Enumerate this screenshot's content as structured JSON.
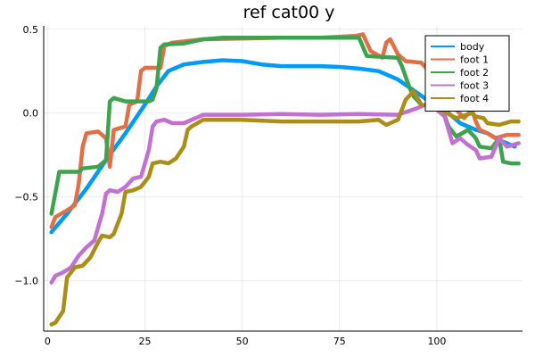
{
  "chart_data": {
    "type": "line",
    "title": "ref cat00 y",
    "xlabel": "",
    "ylabel": "",
    "xlim": [
      -1,
      122
    ],
    "ylim": [
      -1.3,
      0.52
    ],
    "xticks": [
      0,
      25,
      50,
      75,
      100
    ],
    "xtick_labels": [
      "0",
      "25",
      "50",
      "75",
      "100"
    ],
    "yticks": [
      -1.0,
      -0.5,
      0.0,
      0.5
    ],
    "ytick_labels": [
      "−1.0",
      "−0.5",
      "0.0",
      "0.5"
    ],
    "grid": true,
    "legend_position": "top-right",
    "series": [
      {
        "name": "body",
        "color": "#009af9",
        "points": [
          [
            1,
            -0.71
          ],
          [
            5,
            -0.6
          ],
          [
            10,
            -0.45
          ],
          [
            15,
            -0.28
          ],
          [
            20,
            -0.12
          ],
          [
            25,
            0.05
          ],
          [
            28,
            0.16
          ],
          [
            31,
            0.25
          ],
          [
            35,
            0.29
          ],
          [
            40,
            0.305
          ],
          [
            45,
            0.315
          ],
          [
            50,
            0.31
          ],
          [
            55,
            0.29
          ],
          [
            60,
            0.28
          ],
          [
            70,
            0.28
          ],
          [
            75,
            0.275
          ],
          [
            80,
            0.265
          ],
          [
            85,
            0.25
          ],
          [
            90,
            0.2
          ],
          [
            95,
            0.12
          ],
          [
            98,
            0.07
          ],
          [
            100,
            0.05
          ],
          [
            103,
            0.0
          ],
          [
            106,
            -0.06
          ],
          [
            110,
            -0.1
          ],
          [
            113,
            -0.12
          ],
          [
            116,
            -0.16
          ],
          [
            120,
            -0.2
          ]
        ]
      },
      {
        "name": "foot 1",
        "color": "#e26f46",
        "points": [
          [
            1,
            -0.68
          ],
          [
            2,
            -0.62
          ],
          [
            5,
            -0.58
          ],
          [
            7,
            -0.55
          ],
          [
            8,
            -0.42
          ],
          [
            9,
            -0.2
          ],
          [
            10,
            -0.12
          ],
          [
            13,
            -0.11
          ],
          [
            15,
            -0.15
          ],
          [
            16,
            -0.32
          ],
          [
            17,
            -0.1
          ],
          [
            20,
            -0.08
          ],
          [
            21,
            0.05
          ],
          [
            23,
            0.07
          ],
          [
            24,
            0.25
          ],
          [
            25,
            0.27
          ],
          [
            29,
            0.27
          ],
          [
            30,
            0.4
          ],
          [
            32,
            0.42
          ],
          [
            40,
            0.44
          ],
          [
            60,
            0.45
          ],
          [
            70,
            0.45
          ],
          [
            79,
            0.46
          ],
          [
            81,
            0.47
          ],
          [
            83,
            0.37
          ],
          [
            86,
            0.33
          ],
          [
            87,
            0.42
          ],
          [
            88,
            0.44
          ],
          [
            90,
            0.35
          ],
          [
            92,
            0.31
          ],
          [
            96,
            0.3
          ],
          [
            98,
            0.25
          ],
          [
            100,
            0.15
          ],
          [
            102,
            0.05
          ],
          [
            105,
            0.02
          ],
          [
            107,
            -0.03
          ],
          [
            109,
            0.02
          ],
          [
            110,
            -0.05
          ],
          [
            111,
            -0.1
          ],
          [
            113,
            -0.12
          ],
          [
            115,
            -0.15
          ],
          [
            118,
            -0.13
          ],
          [
            121,
            -0.13
          ]
        ]
      },
      {
        "name": "foot 2",
        "color": "#3da44d",
        "points": [
          [
            1,
            -0.6
          ],
          [
            3,
            -0.35
          ],
          [
            8,
            -0.35
          ],
          [
            9,
            -0.33
          ],
          [
            13,
            -0.32
          ],
          [
            15,
            -0.28
          ],
          [
            16,
            0.07
          ],
          [
            17,
            0.09
          ],
          [
            20,
            0.07
          ],
          [
            26,
            0.07
          ],
          [
            27,
            0.08
          ],
          [
            28,
            0.15
          ],
          [
            29,
            0.39
          ],
          [
            30,
            0.41
          ],
          [
            35,
            0.415
          ],
          [
            40,
            0.44
          ],
          [
            45,
            0.45
          ],
          [
            60,
            0.45
          ],
          [
            75,
            0.45
          ],
          [
            80,
            0.45
          ],
          [
            82,
            0.34
          ],
          [
            90,
            0.33
          ],
          [
            91,
            0.28
          ],
          [
            93,
            0.15
          ],
          [
            94,
            0.1
          ],
          [
            96,
            0.05
          ],
          [
            98,
            0.04
          ],
          [
            101,
            0.05
          ],
          [
            103,
            -0.08
          ],
          [
            105,
            -0.14
          ],
          [
            108,
            -0.1
          ],
          [
            110,
            -0.15
          ],
          [
            111,
            -0.2
          ],
          [
            114,
            -0.21
          ],
          [
            116,
            -0.15
          ],
          [
            117,
            -0.29
          ],
          [
            119,
            -0.3
          ],
          [
            121,
            -0.3
          ]
        ]
      },
      {
        "name": "foot 3",
        "color": "#c271d2",
        "points": [
          [
            1,
            -1.01
          ],
          [
            2,
            -0.97
          ],
          [
            4,
            -0.95
          ],
          [
            6,
            -0.92
          ],
          [
            8,
            -0.85
          ],
          [
            10,
            -0.8
          ],
          [
            12,
            -0.76
          ],
          [
            13,
            -0.68
          ],
          [
            14,
            -0.6
          ],
          [
            15,
            -0.48
          ],
          [
            16,
            -0.46
          ],
          [
            18,
            -0.47
          ],
          [
            20,
            -0.44
          ],
          [
            22,
            -0.39
          ],
          [
            24,
            -0.38
          ],
          [
            25,
            -0.3
          ],
          [
            26,
            -0.22
          ],
          [
            27,
            -0.08
          ],
          [
            28,
            -0.05
          ],
          [
            30,
            -0.04
          ],
          [
            32,
            -0.06
          ],
          [
            35,
            -0.06
          ],
          [
            40,
            -0.01
          ],
          [
            50,
            -0.01
          ],
          [
            60,
            -0.005
          ],
          [
            70,
            -0.01
          ],
          [
            80,
            -0.005
          ],
          [
            90,
            -0.01
          ],
          [
            95,
            0.03
          ],
          [
            97,
            0.05
          ],
          [
            100,
            0.02
          ],
          [
            102,
            -0.02
          ],
          [
            104,
            -0.18
          ],
          [
            106,
            -0.15
          ],
          [
            108,
            -0.19
          ],
          [
            110,
            -0.22
          ],
          [
            111,
            -0.27
          ],
          [
            114,
            -0.26
          ],
          [
            116,
            -0.15
          ],
          [
            118,
            -0.2
          ],
          [
            121,
            -0.18
          ]
        ]
      },
      {
        "name": "foot 4",
        "color": "#ac8d18",
        "points": [
          [
            1,
            -1.26
          ],
          [
            2,
            -1.25
          ],
          [
            4,
            -1.18
          ],
          [
            5,
            -0.98
          ],
          [
            7,
            -0.92
          ],
          [
            9,
            -0.91
          ],
          [
            11,
            -0.86
          ],
          [
            13,
            -0.77
          ],
          [
            14,
            -0.73
          ],
          [
            16,
            -0.74
          ],
          [
            17,
            -0.72
          ],
          [
            19,
            -0.6
          ],
          [
            20,
            -0.47
          ],
          [
            22,
            -0.46
          ],
          [
            24,
            -0.44
          ],
          [
            26,
            -0.38
          ],
          [
            27,
            -0.3
          ],
          [
            29,
            -0.29
          ],
          [
            31,
            -0.3
          ],
          [
            33,
            -0.27
          ],
          [
            35,
            -0.2
          ],
          [
            36,
            -0.1
          ],
          [
            37,
            -0.08
          ],
          [
            40,
            -0.04
          ],
          [
            50,
            -0.04
          ],
          [
            60,
            -0.05
          ],
          [
            70,
            -0.05
          ],
          [
            80,
            -0.05
          ],
          [
            85,
            -0.04
          ],
          [
            87,
            -0.07
          ],
          [
            90,
            -0.04
          ],
          [
            92,
            0.08
          ],
          [
            94,
            0.13
          ],
          [
            96,
            0.05
          ],
          [
            98,
            0.04
          ],
          [
            100,
            0.03
          ],
          [
            105,
            -0.03
          ],
          [
            109,
            0.0
          ],
          [
            110,
            -0.02
          ],
          [
            112,
            -0.03
          ],
          [
            113,
            -0.06
          ],
          [
            116,
            -0.07
          ],
          [
            119,
            -0.05
          ],
          [
            121,
            -0.05
          ]
        ]
      }
    ]
  }
}
